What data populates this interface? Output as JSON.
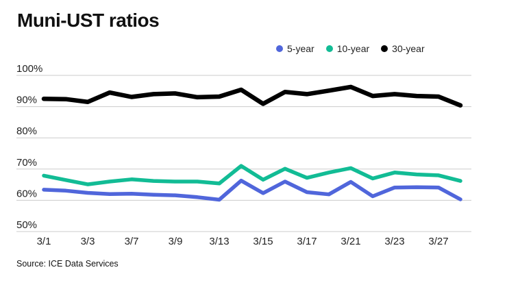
{
  "title": "Muni-UST ratios",
  "source": "Source: ICE Data Services",
  "colors": {
    "five_year": "#5066DB",
    "ten_year": "#12BC95",
    "thirty_year": "#000000",
    "gridline": "#cbcbcb",
    "tick_text": "#222222"
  },
  "chart_data": {
    "type": "line",
    "title": "Muni-UST ratios",
    "grid": "horizontal",
    "legend_position": "top-right",
    "ylim": [
      50,
      100
    ],
    "y_tick_values": [
      100,
      90,
      80,
      70,
      60,
      50
    ],
    "y_tick_labels": [
      "100%",
      "90%",
      "80%",
      "70%",
      "60%",
      "50%"
    ],
    "n_points": 20,
    "x_tick_labels": [
      "3/1",
      "3/3",
      "3/7",
      "3/9",
      "3/13",
      "3/15",
      "3/17",
      "3/21",
      "3/23",
      "3/27"
    ],
    "x_tick_indices": [
      0,
      2,
      4,
      6,
      8,
      10,
      12,
      14,
      16,
      18
    ],
    "series": [
      {
        "name": "5-year",
        "color": "#5066DB",
        "values": [
          63.4,
          63.1,
          62.4,
          62.0,
          62.1,
          61.8,
          61.6,
          61.0,
          60.2,
          66.3,
          62.3,
          66.0,
          62.6,
          61.9,
          65.9,
          61.3,
          64.1,
          64.2,
          64.1,
          60.3
        ]
      },
      {
        "name": "10-year",
        "color": "#12BC95",
        "values": [
          67.9,
          66.5,
          65.1,
          66.0,
          66.7,
          66.2,
          66.0,
          66.0,
          65.4,
          71.0,
          66.6,
          70.1,
          67.2,
          68.9,
          70.3,
          67.0,
          68.9,
          68.3,
          68.0,
          66.2
        ]
      },
      {
        "name": "30-year",
        "color": "#000000",
        "values": [
          92.5,
          92.4,
          91.5,
          94.5,
          93.1,
          94.0,
          94.2,
          93.0,
          93.2,
          95.4,
          90.9,
          94.7,
          94.0,
          95.1,
          96.3,
          93.4,
          94.0,
          93.4,
          93.2,
          90.4
        ]
      }
    ]
  }
}
